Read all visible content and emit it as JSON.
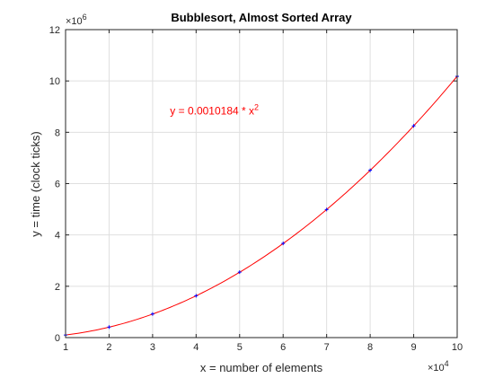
{
  "chart_data": {
    "type": "scatter",
    "title": "Bubblesort, Almost Sorted Array",
    "xlabel": "x = number of elements",
    "ylabel": "y = time (clock ticks)",
    "x_exponent_base": "×10",
    "x_exponent_power": "4",
    "y_exponent_base": "×10",
    "y_exponent_power": "6",
    "xlim": [
      1,
      10
    ],
    "ylim": [
      0,
      12
    ],
    "x_ticks": [
      "1",
      "2",
      "3",
      "4",
      "5",
      "6",
      "7",
      "8",
      "9",
      "10"
    ],
    "y_ticks": [
      "0",
      "2",
      "4",
      "6",
      "8",
      "10",
      "12"
    ],
    "grid": true,
    "series": [
      {
        "kind": "points",
        "color": "#0000ff",
        "x": [
          1,
          2,
          3,
          4,
          5,
          6,
          7,
          8,
          9,
          10
        ],
        "y": [
          0.1,
          0.41,
          0.92,
          1.63,
          2.55,
          3.67,
          4.99,
          6.52,
          8.25,
          10.18
        ]
      },
      {
        "kind": "fit-curve",
        "color": "#ff0000",
        "coefficient": 0.0010184,
        "power": 2
      }
    ],
    "annotation": {
      "prefix": "y = 0.0010184 * x",
      "superscript": "2",
      "color": "#ff0000",
      "anchor_x": 3.4,
      "anchor_y": 8.7
    }
  }
}
